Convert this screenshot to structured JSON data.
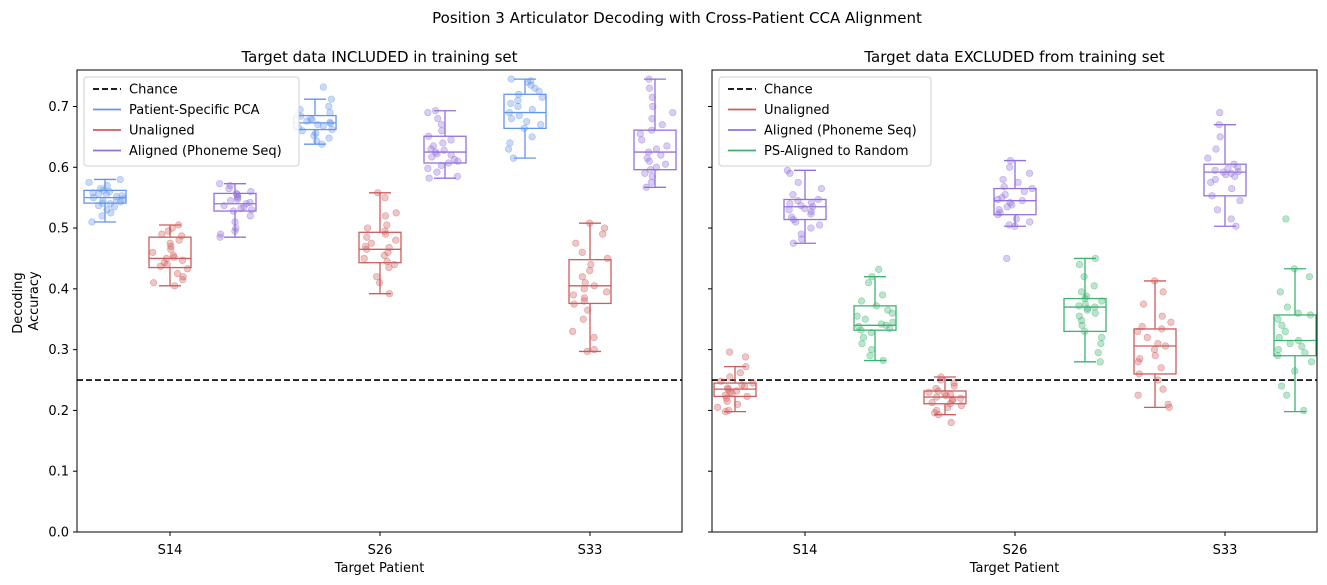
{
  "figure_title": "Position 3 Articulator Decoding with Cross-Patient CCA Alignment",
  "colors": {
    "chance": "#000000",
    "patient_specific_pca": "#6495ED",
    "unaligned": "#CD5C5C",
    "aligned_phoneme_seq": "#9370DB",
    "ps_aligned_random": "#3CB371"
  },
  "chart_data": [
    {
      "type": "box",
      "title": "Target data INCLUDED in training set",
      "xlabel": "Target Patient",
      "ylabel": "Decoding\nAccuracy",
      "ylim": [
        0,
        0.76
      ],
      "yticks": [
        "0.0",
        "0.1",
        "0.2",
        "0.3",
        "0.4",
        "0.5",
        "0.6",
        "0.7"
      ],
      "categories": [
        "S14",
        "S26",
        "S33"
      ],
      "chance": 0.25,
      "legend": [
        "Chance",
        "Patient-Specific PCA",
        "Unaligned",
        "Aligned (Phoneme Seq)"
      ],
      "legend_position": "upper left",
      "series": [
        {
          "name": "Patient-Specific PCA",
          "color_key": "patient_specific_pca",
          "boxes": [
            {
              "whislo": 0.51,
              "q1": 0.541,
              "med": 0.55,
              "q3": 0.562,
              "whishi": 0.58,
              "points": [
                0.58,
                0.575,
                0.57,
                0.565,
                0.562,
                0.56,
                0.558,
                0.556,
                0.555,
                0.553,
                0.552,
                0.55,
                0.548,
                0.546,
                0.545,
                0.543,
                0.541,
                0.54,
                0.537,
                0.535,
                0.53,
                0.525,
                0.52,
                0.51
              ]
            },
            {
              "whislo": 0.638,
              "q1": 0.662,
              "med": 0.673,
              "q3": 0.685,
              "whishi": 0.712,
              "points": [
                0.732,
                0.712,
                0.7,
                0.695,
                0.69,
                0.686,
                0.684,
                0.68,
                0.678,
                0.676,
                0.674,
                0.672,
                0.67,
                0.668,
                0.665,
                0.662,
                0.66,
                0.656,
                0.652,
                0.648,
                0.643,
                0.638
              ]
            },
            {
              "whislo": 0.615,
              "q1": 0.664,
              "med": 0.69,
              "q3": 0.72,
              "whishi": 0.745,
              "points": [
                0.745,
                0.742,
                0.74,
                0.735,
                0.73,
                0.725,
                0.72,
                0.715,
                0.71,
                0.705,
                0.7,
                0.695,
                0.69,
                0.685,
                0.68,
                0.675,
                0.67,
                0.664,
                0.65,
                0.64,
                0.63,
                0.615
              ]
            }
          ]
        },
        {
          "name": "Unaligned",
          "color_key": "unaligned",
          "boxes": [
            {
              "whislo": 0.405,
              "q1": 0.435,
              "med": 0.45,
              "q3": 0.485,
              "whishi": 0.505,
              "points": [
                0.505,
                0.5,
                0.495,
                0.49,
                0.487,
                0.48,
                0.475,
                0.47,
                0.465,
                0.46,
                0.455,
                0.452,
                0.45,
                0.447,
                0.443,
                0.44,
                0.437,
                0.433,
                0.425,
                0.42,
                0.415,
                0.41,
                0.405
              ]
            },
            {
              "whislo": 0.392,
              "q1": 0.443,
              "med": 0.465,
              "q3": 0.493,
              "whishi": 0.558,
              "points": [
                0.558,
                0.55,
                0.525,
                0.52,
                0.505,
                0.5,
                0.495,
                0.49,
                0.485,
                0.48,
                0.475,
                0.47,
                0.468,
                0.465,
                0.46,
                0.455,
                0.45,
                0.445,
                0.44,
                0.435,
                0.42,
                0.41,
                0.392
              ]
            },
            {
              "whislo": 0.297,
              "q1": 0.376,
              "med": 0.405,
              "q3": 0.448,
              "whishi": 0.508,
              "points": [
                0.508,
                0.5,
                0.49,
                0.475,
                0.46,
                0.45,
                0.44,
                0.43,
                0.42,
                0.41,
                0.405,
                0.4,
                0.395,
                0.39,
                0.385,
                0.38,
                0.375,
                0.365,
                0.35,
                0.33,
                0.32,
                0.3,
                0.297
              ]
            }
          ]
        },
        {
          "name": "Aligned (Phoneme Seq)",
          "color_key": "aligned_phoneme_seq",
          "boxes": [
            {
              "whislo": 0.485,
              "q1": 0.528,
              "med": 0.54,
              "q3": 0.557,
              "whishi": 0.573,
              "points": [
                0.573,
                0.57,
                0.565,
                0.56,
                0.557,
                0.555,
                0.552,
                0.55,
                0.547,
                0.545,
                0.542,
                0.54,
                0.537,
                0.535,
                0.532,
                0.53,
                0.528,
                0.52,
                0.51,
                0.5,
                0.495,
                0.49,
                0.485
              ]
            },
            {
              "whislo": 0.582,
              "q1": 0.607,
              "med": 0.625,
              "q3": 0.651,
              "whishi": 0.693,
              "points": [
                0.693,
                0.69,
                0.68,
                0.67,
                0.66,
                0.651,
                0.645,
                0.64,
                0.635,
                0.63,
                0.628,
                0.625,
                0.622,
                0.62,
                0.617,
                0.613,
                0.61,
                0.607,
                0.603,
                0.598,
                0.592,
                0.585,
                0.582
              ]
            },
            {
              "whislo": 0.567,
              "q1": 0.596,
              "med": 0.625,
              "q3": 0.661,
              "whishi": 0.745,
              "points": [
                0.745,
                0.73,
                0.715,
                0.7,
                0.69,
                0.68,
                0.67,
                0.661,
                0.655,
                0.645,
                0.635,
                0.63,
                0.625,
                0.62,
                0.615,
                0.61,
                0.605,
                0.6,
                0.596,
                0.59,
                0.585,
                0.575,
                0.567
              ]
            }
          ]
        }
      ]
    },
    {
      "type": "box",
      "title": "Target data EXCLUDED from training set",
      "xlabel": "Target Patient",
      "ylim": [
        0,
        0.76
      ],
      "categories": [
        "S14",
        "S26",
        "S33"
      ],
      "chance": 0.25,
      "legend": [
        "Chance",
        "Unaligned",
        "Aligned (Phoneme Seq)",
        "PS-Aligned to Random"
      ],
      "legend_position": "upper left",
      "series": [
        {
          "name": "Unaligned",
          "color_key": "unaligned",
          "boxes": [
            {
              "whislo": 0.198,
              "q1": 0.223,
              "med": 0.235,
              "q3": 0.245,
              "whishi": 0.272,
              "points": [
                0.296,
                0.288,
                0.272,
                0.262,
                0.255,
                0.248,
                0.245,
                0.242,
                0.24,
                0.237,
                0.235,
                0.232,
                0.23,
                0.228,
                0.225,
                0.223,
                0.22,
                0.215,
                0.21,
                0.205,
                0.2,
                0.198
              ]
            },
            {
              "whislo": 0.193,
              "q1": 0.211,
              "med": 0.222,
              "q3": 0.232,
              "whishi": 0.255,
              "points": [
                0.255,
                0.25,
                0.245,
                0.24,
                0.236,
                0.232,
                0.23,
                0.228,
                0.226,
                0.224,
                0.222,
                0.22,
                0.218,
                0.216,
                0.213,
                0.211,
                0.208,
                0.205,
                0.2,
                0.196,
                0.193,
                0.18
              ]
            },
            {
              "whislo": 0.205,
              "q1": 0.26,
              "med": 0.306,
              "q3": 0.334,
              "whishi": 0.413,
              "points": [
                0.413,
                0.395,
                0.375,
                0.355,
                0.345,
                0.338,
                0.334,
                0.33,
                0.32,
                0.31,
                0.306,
                0.3,
                0.29,
                0.285,
                0.28,
                0.27,
                0.26,
                0.25,
                0.235,
                0.225,
                0.21,
                0.205
              ]
            }
          ]
        },
        {
          "name": "Aligned (Phoneme Seq)",
          "color_key": "aligned_phoneme_seq",
          "boxes": [
            {
              "whislo": 0.475,
              "q1": 0.514,
              "med": 0.535,
              "q3": 0.547,
              "whishi": 0.595,
              "points": [
                0.595,
                0.59,
                0.575,
                0.565,
                0.555,
                0.547,
                0.545,
                0.542,
                0.54,
                0.537,
                0.535,
                0.532,
                0.53,
                0.527,
                0.523,
                0.518,
                0.514,
                0.51,
                0.505,
                0.5,
                0.49,
                0.482,
                0.475
              ]
            },
            {
              "whislo": 0.503,
              "q1": 0.522,
              "med": 0.545,
              "q3": 0.565,
              "whishi": 0.611,
              "points": [
                0.611,
                0.6,
                0.59,
                0.58,
                0.575,
                0.568,
                0.565,
                0.56,
                0.555,
                0.55,
                0.547,
                0.545,
                0.542,
                0.538,
                0.535,
                0.53,
                0.525,
                0.522,
                0.515,
                0.51,
                0.505,
                0.503,
                0.45
              ]
            },
            {
              "whislo": 0.503,
              "q1": 0.553,
              "med": 0.592,
              "q3": 0.605,
              "whishi": 0.67,
              "points": [
                0.69,
                0.67,
                0.65,
                0.63,
                0.615,
                0.605,
                0.6,
                0.598,
                0.595,
                0.593,
                0.592,
                0.59,
                0.588,
                0.585,
                0.58,
                0.575,
                0.565,
                0.553,
                0.545,
                0.53,
                0.515,
                0.503
              ]
            }
          ]
        },
        {
          "name": "PS-Aligned to Random",
          "color_key": "ps_aligned_random",
          "boxes": [
            {
              "whislo": 0.282,
              "q1": 0.332,
              "med": 0.34,
              "q3": 0.372,
              "whishi": 0.42,
              "points": [
                0.432,
                0.42,
                0.41,
                0.39,
                0.38,
                0.372,
                0.365,
                0.36,
                0.355,
                0.35,
                0.345,
                0.342,
                0.34,
                0.338,
                0.335,
                0.332,
                0.328,
                0.32,
                0.31,
                0.3,
                0.29,
                0.282
              ]
            },
            {
              "whislo": 0.28,
              "q1": 0.33,
              "med": 0.37,
              "q3": 0.384,
              "whishi": 0.45,
              "points": [
                0.45,
                0.44,
                0.42,
                0.405,
                0.395,
                0.388,
                0.384,
                0.38,
                0.375,
                0.372,
                0.37,
                0.368,
                0.365,
                0.36,
                0.355,
                0.348,
                0.34,
                0.33,
                0.32,
                0.31,
                0.295,
                0.28
              ]
            },
            {
              "whislo": 0.198,
              "q1": 0.29,
              "med": 0.315,
              "q3": 0.357,
              "whishi": 0.433,
              "points": [
                0.515,
                0.433,
                0.42,
                0.395,
                0.37,
                0.36,
                0.357,
                0.35,
                0.34,
                0.33,
                0.32,
                0.315,
                0.31,
                0.305,
                0.3,
                0.295,
                0.29,
                0.28,
                0.265,
                0.24,
                0.225,
                0.2
              ]
            }
          ]
        }
      ]
    }
  ]
}
